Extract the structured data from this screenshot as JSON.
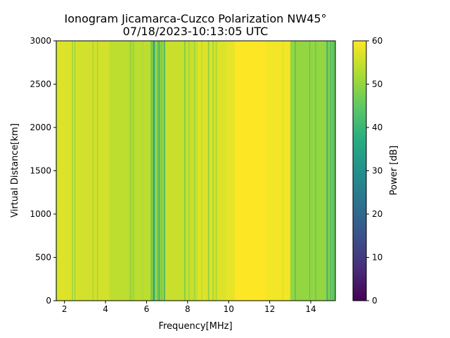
{
  "chart_data": {
    "type": "heatmap",
    "title_line1": "Ionogram Jicamarca-Cuzco Polarization NW45°",
    "title_line2": "07/18/2023-10:13:05 UTC",
    "xlabel": "Frequency[MHz]",
    "ylabel": "Virtual Distance[km]",
    "colorbar_label": "Power [dB]",
    "xlim": [
      1.6,
      15.2
    ],
    "ylim": [
      0,
      3000
    ],
    "x_ticks": [
      2,
      4,
      6,
      8,
      10,
      12,
      14
    ],
    "y_ticks": [
      0,
      500,
      1000,
      1500,
      2000,
      2500,
      3000
    ],
    "color_scale": {
      "colormap": "viridis",
      "min": 0,
      "max": 60,
      "ticks": [
        0,
        10,
        20,
        30,
        40,
        50,
        60
      ]
    },
    "frequency_bands": [
      {
        "from": 1.6,
        "to": 2.6,
        "power_db": 57,
        "texture": 0.25
      },
      {
        "from": 2.6,
        "to": 4.2,
        "power_db": 56,
        "texture": 0.3
      },
      {
        "from": 4.2,
        "to": 6.2,
        "power_db": 54,
        "texture": 0.45
      },
      {
        "from": 6.2,
        "to": 6.9,
        "power_db": 50,
        "texture": 0.8
      },
      {
        "from": 6.9,
        "to": 8.5,
        "power_db": 55,
        "texture": 0.4
      },
      {
        "from": 8.5,
        "to": 9.9,
        "power_db": 57,
        "texture": 0.25
      },
      {
        "from": 9.9,
        "to": 10.3,
        "power_db": 58,
        "texture": 0.1
      },
      {
        "from": 10.3,
        "to": 11.8,
        "power_db": 60,
        "texture": 0.0
      },
      {
        "from": 11.8,
        "to": 13.0,
        "power_db": 59,
        "texture": 0.1
      },
      {
        "from": 13.0,
        "to": 15.2,
        "power_db": 50,
        "texture": 0.85
      }
    ],
    "grid": false
  }
}
